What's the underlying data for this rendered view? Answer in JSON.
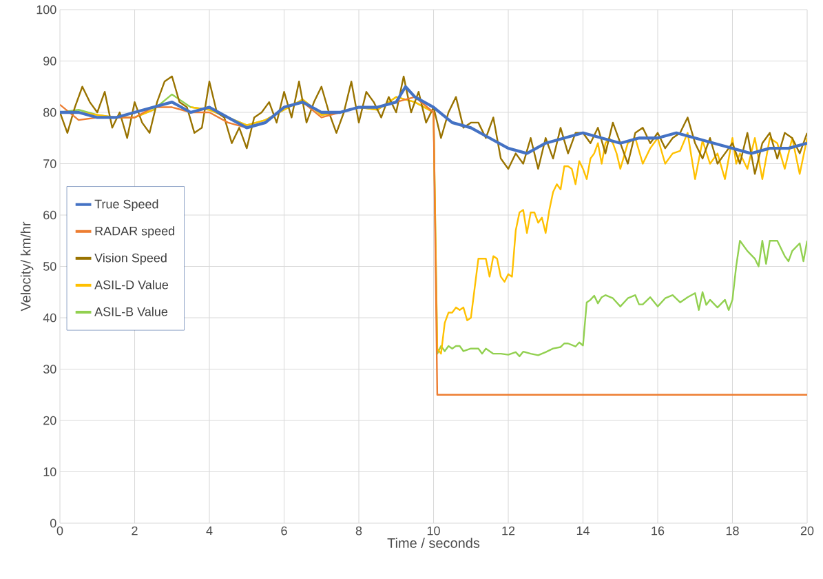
{
  "chart_data": {
    "type": "line",
    "xlabel": "Time / seconds",
    "ylabel": "Velocity/  km/hr",
    "xlim": [
      0,
      20
    ],
    "xticks": [
      0,
      2,
      4,
      6,
      8,
      10,
      12,
      14,
      16,
      18,
      20
    ],
    "ylim": [
      0,
      100
    ],
    "yticks": [
      0,
      10,
      20,
      30,
      40,
      50,
      60,
      70,
      80,
      90,
      100
    ],
    "grid": true,
    "legend": "left",
    "marker": "none",
    "line_style": "solid",
    "series": [
      {
        "name": "True Speed",
        "color": "#4472c4",
        "x": [
          0,
          0.5,
          1,
          1.5,
          2,
          2.5,
          3,
          3.5,
          4,
          4.5,
          5,
          5.5,
          6,
          6.5,
          7,
          7.5,
          8,
          8.5,
          9,
          9.25,
          9.5,
          10,
          10.5,
          11,
          11.5,
          12,
          12.5,
          13,
          13.5,
          14,
          14.5,
          15,
          15.5,
          16,
          16.5,
          17,
          17.5,
          18,
          18.5,
          19,
          19.5,
          20
        ],
        "values": [
          80,
          80,
          79,
          79,
          80,
          81,
          82,
          80,
          81,
          79,
          77,
          78,
          81,
          82,
          80,
          80,
          81,
          81,
          82,
          85,
          83,
          81,
          78,
          77,
          75,
          73,
          72,
          74,
          75,
          76,
          75,
          74,
          75,
          75,
          76,
          75,
          74,
          73,
          72,
          73,
          73,
          74
        ]
      },
      {
        "name": "RADAR speed",
        "color": "#ed7d31",
        "x": [
          0,
          0.5,
          1,
          1.5,
          2,
          2.5,
          3,
          3.5,
          4,
          4.5,
          5,
          5.5,
          6,
          6.5,
          7,
          7.5,
          8,
          8.5,
          9,
          9.5,
          10,
          10.1,
          20
        ],
        "values": [
          81.5,
          78.5,
          79,
          79,
          79,
          81,
          81,
          80,
          80,
          78,
          77,
          78,
          81,
          82,
          79,
          80,
          81,
          81,
          82,
          83,
          80,
          25,
          25
        ]
      },
      {
        "name": "Vision Speed",
        "color": "#997300",
        "x": [
          0,
          0.2,
          0.4,
          0.6,
          0.8,
          1,
          1.2,
          1.4,
          1.6,
          1.8,
          2,
          2.2,
          2.4,
          2.6,
          2.8,
          3,
          3.2,
          3.4,
          3.6,
          3.8,
          4,
          4.2,
          4.4,
          4.6,
          4.8,
          5,
          5.2,
          5.4,
          5.6,
          5.8,
          6,
          6.2,
          6.4,
          6.6,
          6.8,
          7,
          7.2,
          7.4,
          7.6,
          7.8,
          8,
          8.2,
          8.4,
          8.6,
          8.8,
          9,
          9.2,
          9.4,
          9.6,
          9.8,
          10,
          10.2,
          10.4,
          10.6,
          10.8,
          11,
          11.2,
          11.4,
          11.6,
          11.8,
          12,
          12.2,
          12.4,
          12.6,
          12.8,
          13,
          13.2,
          13.4,
          13.6,
          13.8,
          14,
          14.2,
          14.4,
          14.6,
          14.8,
          15,
          15.2,
          15.4,
          15.6,
          15.8,
          16,
          16.2,
          16.4,
          16.6,
          16.8,
          17,
          17.2,
          17.4,
          17.6,
          17.8,
          18,
          18.2,
          18.4,
          18.6,
          18.8,
          19,
          19.2,
          19.4,
          19.6,
          19.8,
          20
        ],
        "values": [
          80,
          76,
          81,
          85,
          82,
          80,
          84,
          77,
          80,
          75,
          82,
          78,
          76,
          82,
          86,
          87,
          82,
          81,
          76,
          77,
          86,
          80,
          79,
          74,
          77,
          73,
          79,
          80,
          82,
          78,
          84,
          79,
          86,
          78,
          82,
          85,
          80,
          76,
          80,
          86,
          78,
          84,
          82,
          79,
          83,
          80,
          87,
          80,
          84,
          78,
          81,
          75,
          80,
          83,
          77,
          78,
          78,
          75,
          79,
          71,
          69,
          72,
          70,
          75,
          69,
          75,
          71,
          77,
          72,
          76,
          76,
          74,
          77,
          72,
          78,
          74,
          70,
          76,
          77,
          74,
          76,
          73,
          75,
          76,
          79,
          74,
          71,
          75,
          70,
          72,
          74,
          70,
          76,
          68,
          74,
          76,
          71,
          76,
          75,
          72,
          76
        ]
      },
      {
        "name": "ASIL-D Value",
        "color": "#ffc000",
        "x": [
          0,
          0.5,
          1,
          1.5,
          2,
          2.5,
          3,
          3.5,
          4,
          4.5,
          5,
          5.5,
          6,
          6.5,
          7,
          7.5,
          8,
          8.5,
          9,
          9.5,
          10,
          10.1,
          10.2,
          10.3,
          10.4,
          10.5,
          10.6,
          10.7,
          10.8,
          10.9,
          11,
          11.2,
          11.4,
          11.5,
          11.6,
          11.7,
          11.8,
          11.9,
          12,
          12.1,
          12.2,
          12.3,
          12.4,
          12.5,
          12.6,
          12.7,
          12.8,
          12.9,
          13,
          13.1,
          13.2,
          13.3,
          13.4,
          13.5,
          13.6,
          13.7,
          13.8,
          13.9,
          14,
          14.1,
          14.2,
          14.3,
          14.4,
          14.5,
          14.6,
          14.7,
          14.8,
          14.9,
          15,
          15.2,
          15.4,
          15.6,
          15.8,
          16,
          16.2,
          16.4,
          16.6,
          16.8,
          17,
          17.2,
          17.4,
          17.6,
          17.8,
          18,
          18.1,
          18.2,
          18.4,
          18.6,
          18.8,
          19,
          19.2,
          19.4,
          19.6,
          19.8,
          20
        ],
        "values": [
          80,
          80,
          79.5,
          79,
          79,
          80.5,
          null,
          81,
          80.5,
          79,
          77.5,
          78.5,
          80.5,
          82.5,
          79.5,
          80,
          81,
          80.5,
          83,
          82,
          80,
          34,
          33,
          39,
          41,
          41,
          42,
          41.5,
          42,
          39.5,
          40,
          51.5,
          51.5,
          48,
          52,
          51.5,
          48,
          47,
          48.5,
          48,
          57,
          60.5,
          61,
          56.5,
          60.5,
          60.5,
          58.5,
          59.5,
          56.5,
          61,
          64.5,
          66,
          65,
          69.5,
          69.5,
          69,
          66,
          70.5,
          69,
          67,
          71,
          72,
          74,
          70,
          74,
          75,
          74,
          72,
          69,
          74,
          75,
          70,
          73,
          75,
          70,
          72,
          72.5,
          76,
          67,
          74.5,
          70,
          72,
          67,
          75,
          70,
          72,
          69,
          75,
          67,
          75,
          74,
          69,
          75,
          68,
          75
        ]
      },
      {
        "name": "ASIL-B Value",
        "color": "#92d050",
        "x": [
          0,
          0.5,
          1,
          1.5,
          2,
          2.5,
          3,
          3.5,
          4,
          4.5,
          5,
          5.5,
          6,
          6.5,
          7,
          7.5,
          8,
          8.5,
          9,
          9.5,
          10,
          10.1,
          10.2,
          10.3,
          10.4,
          10.5,
          10.6,
          10.7,
          10.8,
          11,
          11.2,
          11.3,
          11.4,
          11.5,
          11.6,
          11.8,
          12,
          12.2,
          12.3,
          12.4,
          12.6,
          12.8,
          13,
          13.2,
          13.4,
          13.5,
          13.6,
          13.8,
          13.9,
          14,
          14.1,
          14.2,
          14.3,
          14.4,
          14.5,
          14.6,
          14.8,
          15,
          15.2,
          15.4,
          15.5,
          15.6,
          15.8,
          16,
          16.2,
          16.4,
          16.6,
          16.8,
          17,
          17.1,
          17.2,
          17.3,
          17.4,
          17.6,
          17.8,
          17.9,
          18,
          18.1,
          18.2,
          18.4,
          18.6,
          18.7,
          18.8,
          18.9,
          19,
          19.2,
          19.4,
          19.5,
          19.6,
          19.8,
          19.9,
          20
        ],
        "values": [
          80,
          80.5,
          79.5,
          79,
          79,
          80.5,
          83.5,
          81,
          80.5,
          79,
          77.5,
          78.5,
          80.5,
          82.5,
          79.5,
          80,
          81,
          80.5,
          83,
          82,
          80,
          33,
          34.5,
          33.5,
          34.5,
          34,
          34.5,
          34.5,
          33.5,
          34,
          34,
          33,
          34,
          33.5,
          33,
          33,
          32.8,
          33.3,
          32.5,
          33.4,
          33,
          32.7,
          33.3,
          34,
          34.3,
          35,
          35,
          34.4,
          35.2,
          34.6,
          43,
          43.5,
          44.3,
          42.8,
          44,
          44.4,
          43.8,
          42.2,
          43.8,
          44.4,
          42.6,
          42.6,
          44,
          42.2,
          43.8,
          44.4,
          43,
          44,
          44.8,
          41.5,
          45,
          42.5,
          43.5,
          42,
          43.5,
          41.5,
          43.5,
          50,
          55,
          53,
          51.5,
          50,
          55,
          50.5,
          55,
          55,
          52,
          51,
          53,
          54.5,
          51,
          55
        ]
      }
    ]
  }
}
